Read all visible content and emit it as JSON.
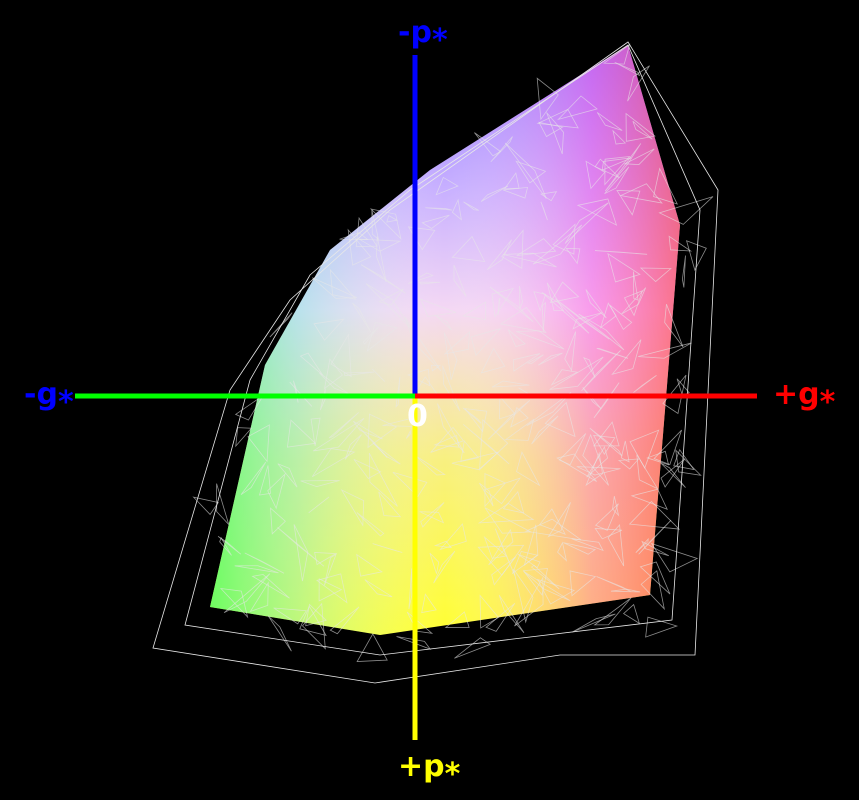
{
  "axes": {
    "top": {
      "base": "-p",
      "sub": "*"
    },
    "bottom": {
      "base": "+p",
      "sub": "*"
    },
    "left": {
      "base": "-g",
      "sub": "*"
    },
    "right": {
      "base": "+g",
      "sub": "*"
    },
    "origin": "0"
  }
}
